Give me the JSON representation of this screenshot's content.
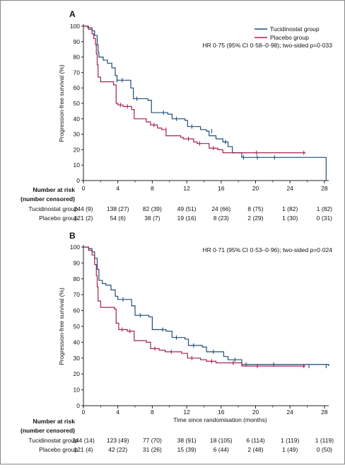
{
  "figure": {
    "risk_header": "Number at risk",
    "risk_subheader": "(number censored)"
  },
  "chart_data": [
    {
      "panel": "A",
      "type": "line",
      "ylabel": "Progression-free survival (%)",
      "xlabel": "",
      "xlim": [
        0,
        28.5
      ],
      "ylim": [
        0,
        100
      ],
      "xticks": [
        0,
        4,
        8,
        12,
        16,
        20,
        24,
        28
      ],
      "yticks": [
        0,
        10,
        20,
        30,
        40,
        50,
        60,
        70,
        80,
        90,
        100
      ],
      "grid": false,
      "legend_position": "top-right",
      "annotation": "HR 0·75 (95% CI 0·58–0·98); two-sided p=0·033",
      "series": [
        {
          "name": "Tucidinostat group",
          "color": "#1f4e79",
          "steps": [
            [
              0,
              100
            ],
            [
              0.5,
              99
            ],
            [
              1,
              97
            ],
            [
              1.3,
              94
            ],
            [
              1.6,
              88
            ],
            [
              1.7,
              83
            ],
            [
              1.8,
              80
            ],
            [
              2.3,
              78
            ],
            [
              2.8,
              76
            ],
            [
              3.3,
              73
            ],
            [
              3.7,
              68
            ],
            [
              3.9,
              65
            ],
            [
              5.5,
              60
            ],
            [
              5.8,
              53
            ],
            [
              7.5,
              52
            ],
            [
              7.9,
              44
            ],
            [
              9.8,
              43
            ],
            [
              10.3,
              40
            ],
            [
              11.8,
              39
            ],
            [
              12.1,
              35
            ],
            [
              13.6,
              33
            ],
            [
              14.3,
              32
            ],
            [
              14.6,
              29
            ],
            [
              15.4,
              27
            ],
            [
              16.2,
              25
            ],
            [
              16.8,
              22
            ],
            [
              17.3,
              18
            ],
            [
              18.4,
              15
            ],
            [
              28.0,
              15
            ],
            [
              28.2,
              0
            ]
          ],
          "censor": [
            [
              3.9,
              65
            ],
            [
              4.5,
              65
            ],
            [
              6.2,
              53
            ],
            [
              9.3,
              44
            ],
            [
              10.8,
              40
            ],
            [
              12.6,
              35
            ],
            [
              14.9,
              32
            ],
            [
              16.5,
              25
            ],
            [
              18.6,
              15
            ],
            [
              20.2,
              15
            ],
            [
              22.2,
              15
            ]
          ]
        },
        {
          "name": "Placebo group",
          "color": "#a3224e",
          "steps": [
            [
              0,
              100
            ],
            [
              0.6,
              98
            ],
            [
              1,
              95
            ],
            [
              1.2,
              92
            ],
            [
              1.4,
              88
            ],
            [
              1.5,
              82
            ],
            [
              1.6,
              75
            ],
            [
              1.7,
              67
            ],
            [
              2,
              64
            ],
            [
              3.5,
              62
            ],
            [
              3.8,
              50
            ],
            [
              4,
              49
            ],
            [
              4.6,
              48
            ],
            [
              5.6,
              46
            ],
            [
              5.9,
              40
            ],
            [
              7.3,
              38
            ],
            [
              7.8,
              36
            ],
            [
              8.6,
              34
            ],
            [
              9.1,
              33
            ],
            [
              9.6,
              29
            ],
            [
              11.3,
              28
            ],
            [
              11.6,
              27
            ],
            [
              12.8,
              25
            ],
            [
              13.2,
              24
            ],
            [
              14.6,
              21
            ],
            [
              15.6,
              20
            ],
            [
              16.2,
              18
            ],
            [
              25.8,
              18
            ]
          ],
          "censor": [
            [
              4.3,
              49
            ],
            [
              5.1,
              48
            ],
            [
              8.2,
              36
            ],
            [
              9.6,
              33
            ],
            [
              12.2,
              27
            ],
            [
              13.5,
              24
            ],
            [
              15.1,
              21
            ],
            [
              20.1,
              18
            ],
            [
              25.6,
              18
            ]
          ]
        }
      ],
      "risk_table": {
        "rows": [
          {
            "label": "Tucidinostat group",
            "values": [
              "244 (9)",
              "138 (27)",
              "82 (39)",
              "49 (51)",
              "24 (66)",
              "8 (75)",
              "1 (82)",
              "1 (82)"
            ]
          },
          {
            "label": "Placebo group",
            "values": [
              "121 (2)",
              "54 (6)",
              "38 (7)",
              "19 (16)",
              "8 (23)",
              "2 (29)",
              "1 (30)",
              "0 (31)"
            ]
          }
        ]
      }
    },
    {
      "panel": "B",
      "type": "line",
      "ylabel": "Progression-free survival (%)",
      "xlabel": "Time since randomisation (months)",
      "xlim": [
        0,
        28.5
      ],
      "ylim": [
        0,
        100
      ],
      "xticks": [
        0,
        4,
        8,
        12,
        16,
        20,
        24,
        28
      ],
      "yticks": [
        0,
        10,
        20,
        30,
        40,
        50,
        60,
        70,
        80,
        90,
        100
      ],
      "grid": false,
      "annotation": "HR 0·71 (95% CI 0·53–0·96); two-sided p=0·024",
      "series": [
        {
          "name": "Tucidinostat group",
          "color": "#1f4e79",
          "steps": [
            [
              0,
              100
            ],
            [
              0.6,
              99
            ],
            [
              1,
              97
            ],
            [
              1.3,
              93
            ],
            [
              1.6,
              86
            ],
            [
              1.8,
              79
            ],
            [
              2.2,
              77
            ],
            [
              2.6,
              76
            ],
            [
              3.2,
              73
            ],
            [
              3.7,
              69
            ],
            [
              4,
              67
            ],
            [
              5.6,
              63
            ],
            [
              6,
              57
            ],
            [
              7.6,
              56
            ],
            [
              8,
              48
            ],
            [
              9.6,
              47
            ],
            [
              10.3,
              43
            ],
            [
              11.8,
              42
            ],
            [
              12.2,
              38
            ],
            [
              13.8,
              37
            ],
            [
              14.3,
              34
            ],
            [
              16.3,
              31
            ],
            [
              16.8,
              29
            ],
            [
              18.4,
              26
            ],
            [
              28.5,
              25
            ]
          ],
          "censor": [
            [
              4.6,
              67
            ],
            [
              6.6,
              57
            ],
            [
              9.2,
              48
            ],
            [
              10.8,
              43
            ],
            [
              12.8,
              38
            ],
            [
              15.1,
              34
            ],
            [
              17.6,
              29
            ],
            [
              18.9,
              26
            ],
            [
              22.1,
              26
            ],
            [
              26.2,
              25
            ],
            [
              28.2,
              25
            ]
          ]
        },
        {
          "name": "Placebo group",
          "color": "#a3224e",
          "steps": [
            [
              0,
              100
            ],
            [
              0.6,
              98
            ],
            [
              1,
              95
            ],
            [
              1.3,
              89
            ],
            [
              1.5,
              82
            ],
            [
              1.6,
              75
            ],
            [
              1.7,
              66
            ],
            [
              2,
              62
            ],
            [
              3.6,
              61
            ],
            [
              3.8,
              52
            ],
            [
              4.1,
              48
            ],
            [
              5.1,
              47
            ],
            [
              5.9,
              41
            ],
            [
              7.3,
              40
            ],
            [
              7.8,
              36
            ],
            [
              8.8,
              35
            ],
            [
              9.5,
              34
            ],
            [
              11.4,
              33
            ],
            [
              12.1,
              30
            ],
            [
              13.6,
              29
            ],
            [
              14.3,
              28
            ],
            [
              15.4,
              27
            ],
            [
              18.4,
              25
            ],
            [
              25.8,
              25
            ]
          ],
          "censor": [
            [
              4.5,
              48
            ],
            [
              5.4,
              47
            ],
            [
              8.3,
              36
            ],
            [
              10.2,
              34
            ],
            [
              12.6,
              30
            ],
            [
              14.9,
              28
            ],
            [
              17.4,
              27
            ],
            [
              20.2,
              25
            ],
            [
              25.6,
              25
            ]
          ]
        }
      ],
      "risk_table": {
        "rows": [
          {
            "label": "Tucidinostat group",
            "values": [
              "244 (14)",
              "123 (49)",
              "77 (70)",
              "38 (91)",
              "18 (105)",
              "6 (114)",
              "1 (119)",
              "1 (119)"
            ]
          },
          {
            "label": "Placebo group",
            "values": [
              "121 (4)",
              "42 (22)",
              "31 (26)",
              "15 (39)",
              "6 (44)",
              "2 (48)",
              "1 (49)",
              "0 (50)"
            ]
          }
        ]
      }
    }
  ]
}
